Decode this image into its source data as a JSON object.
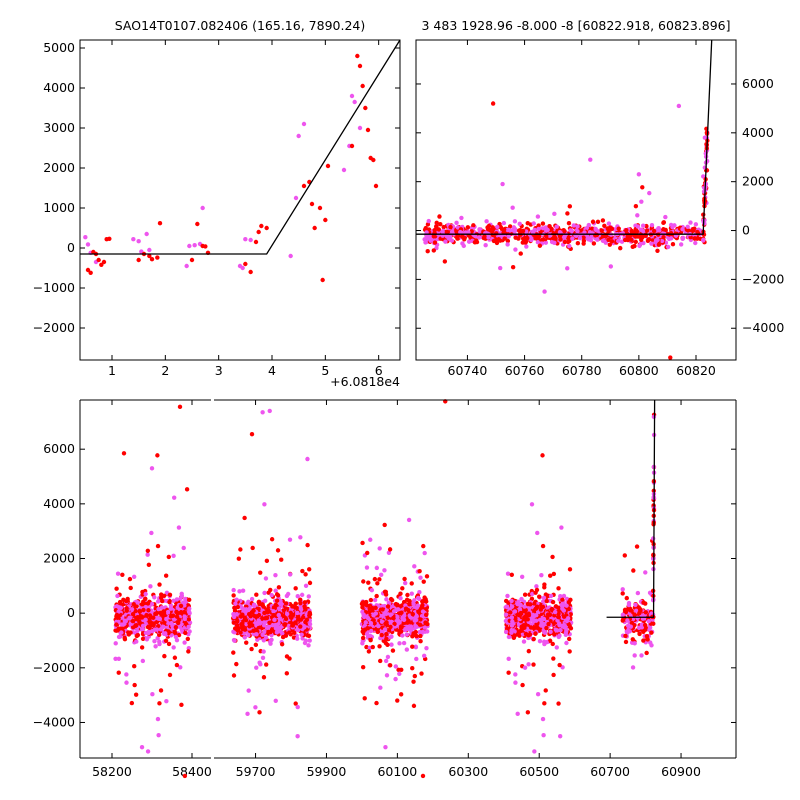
{
  "chart_data": [
    {
      "type": "scatter",
      "title": "SAO14T0107.082406 (165.16, 7890.24)",
      "x_offset_label": "+6.0818e4",
      "xlim": [
        0.4,
        6.4
      ],
      "ylim": [
        -2800,
        5200
      ],
      "xticks": [
        "1",
        "2",
        "3",
        "4",
        "5",
        "6"
      ],
      "yticks": [
        "−2000",
        "−1000",
        "0",
        "1000",
        "2000",
        "3000",
        "4000",
        "5000"
      ],
      "colors": {
        "red": "#ff0000",
        "magenta": "#ee55ee",
        "model": "#000000"
      },
      "model_line": {
        "x": [
          0.4,
          3.9,
          6.4
        ],
        "y": [
          -150,
          -150,
          5200
        ]
      },
      "series": [
        {
          "color": "red",
          "points": [
            [
              0.55,
              -550
            ],
            [
              0.6,
              -620
            ],
            [
              0.65,
              -100
            ],
            [
              0.7,
              -150
            ],
            [
              0.75,
              -300
            ],
            [
              0.8,
              -420
            ],
            [
              0.85,
              -350
            ],
            [
              0.9,
              220
            ],
            [
              0.95,
              230
            ],
            [
              1.5,
              -300
            ],
            [
              1.6,
              -150
            ],
            [
              1.7,
              -200
            ],
            [
              1.75,
              -280
            ],
            [
              1.85,
              -240
            ],
            [
              1.9,
              620
            ],
            [
              2.5,
              -300
            ],
            [
              2.6,
              600
            ],
            [
              2.7,
              50
            ],
            [
              2.75,
              40
            ],
            [
              2.8,
              -120
            ],
            [
              3.5,
              -400
            ],
            [
              3.6,
              -600
            ],
            [
              3.7,
              150
            ],
            [
              3.75,
              400
            ],
            [
              3.8,
              550
            ],
            [
              3.9,
              500
            ],
            [
              4.6,
              1550
            ],
            [
              4.7,
              1650
            ],
            [
              4.75,
              1100
            ],
            [
              4.8,
              500
            ],
            [
              4.9,
              1000
            ],
            [
              4.95,
              -800
            ],
            [
              5.0,
              700
            ],
            [
              5.05,
              2050
            ],
            [
              5.5,
              2550
            ],
            [
              5.6,
              4800
            ],
            [
              5.65,
              4550
            ],
            [
              5.7,
              4050
            ],
            [
              5.75,
              3500
            ],
            [
              5.8,
              2950
            ],
            [
              5.85,
              2250
            ],
            [
              5.9,
              2200
            ],
            [
              5.95,
              1550
            ]
          ]
        },
        {
          "color": "magenta",
          "points": [
            [
              0.5,
              270
            ],
            [
              0.55,
              90
            ],
            [
              0.6,
              -120
            ],
            [
              0.7,
              -350
            ],
            [
              1.4,
              220
            ],
            [
              1.5,
              170
            ],
            [
              1.55,
              -90
            ],
            [
              1.65,
              350
            ],
            [
              1.7,
              -50
            ],
            [
              2.4,
              -450
            ],
            [
              2.45,
              50
            ],
            [
              2.55,
              70
            ],
            [
              2.65,
              100
            ],
            [
              2.7,
              1000
            ],
            [
              3.4,
              -450
            ],
            [
              3.45,
              -500
            ],
            [
              3.5,
              220
            ],
            [
              3.6,
              200
            ],
            [
              4.35,
              -200
            ],
            [
              4.45,
              1250
            ],
            [
              4.5,
              2800
            ],
            [
              4.6,
              3100
            ],
            [
              5.35,
              1950
            ],
            [
              5.45,
              2550
            ],
            [
              5.5,
              3800
            ],
            [
              5.55,
              3650
            ],
            [
              5.65,
              3000
            ]
          ]
        }
      ]
    },
    {
      "type": "scatter",
      "title": "3 483 1928.96 -8.000 -8 [60822.918, 60823.896]",
      "xlim": [
        60722,
        60834
      ],
      "ylim": [
        -5300,
        7800
      ],
      "xticks": [
        "60740",
        "60760",
        "60780",
        "60800",
        "60820"
      ],
      "yticks": [
        "−4000",
        "−2000",
        "0",
        "2000",
        "4000",
        "6000"
      ],
      "model_line": {
        "x": [
          60722,
          60822.5,
          60825.5
        ],
        "y": [
          -150,
          -150,
          7800
        ]
      }
    },
    {
      "type": "scatter",
      "xlim": [
        58120,
        61055
      ],
      "ylim": [
        -5300,
        7800
      ],
      "xticks": [
        "58200",
        "58400",
        "59700",
        "59900",
        "60100",
        "60300",
        "60500",
        "60700",
        "60900"
      ],
      "yticks": [
        "−4000",
        "−2000",
        "0",
        "2000",
        "4000",
        "6000"
      ],
      "model_line": {
        "x": [
          60690,
          60822.5,
          60825.5
        ],
        "y": [
          -150,
          -150,
          7800
        ]
      },
      "season_ranges": [
        [
          58120,
          58450
        ],
        [
          59580,
          59870
        ],
        [
          59990,
          60210
        ],
        [
          60360,
          60590
        ],
        [
          60730,
          60825
        ]
      ]
    }
  ]
}
